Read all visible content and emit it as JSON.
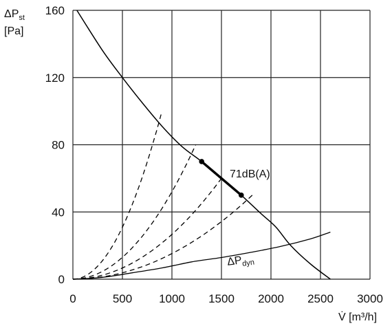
{
  "chart_data": {
    "type": "line",
    "ylabel_main": "ΔP",
    "ylabel_sub": "st",
    "ylabel_unit": "[Pa]",
    "xlabel": "V̇ [m³/h]",
    "xlim": [
      0,
      3000
    ],
    "ylim": [
      0,
      160
    ],
    "xticks": [
      0,
      500,
      1000,
      1500,
      2000,
      2500,
      3000
    ],
    "yticks": [
      0,
      40,
      80,
      120,
      160
    ],
    "xtick_labels": [
      "0",
      "500",
      "1000",
      "1500",
      "2000",
      "2500",
      "3000"
    ],
    "ytick_labels": [
      "0",
      "40",
      "80",
      "120",
      "160"
    ],
    "grid": true,
    "fan_curve": {
      "x": [
        40,
        300,
        500,
        700,
        900,
        1100,
        1300,
        1500,
        1700,
        1900,
        2050,
        2200,
        2400,
        2600
      ],
      "y": [
        160,
        136,
        120,
        105,
        91,
        79,
        70,
        60,
        50,
        39,
        31,
        20,
        9,
        0
      ]
    },
    "dynamic_pressure": {
      "label_main": "ΔP",
      "label_sub": "dyn",
      "x": [
        0,
        300,
        600,
        900,
        1200,
        1500,
        1800,
        2100,
        2400,
        2600
      ],
      "y": [
        0,
        1.1,
        3.8,
        6.7,
        10.3,
        12.9,
        16,
        19.5,
        24,
        28
      ]
    },
    "system_curves": [
      {
        "x_end": 890,
        "y_end": 98
      },
      {
        "x_end": 1240,
        "y_end": 80
      },
      {
        "x_end": 1500,
        "y_end": 60
      },
      {
        "x_end": 1830,
        "y_end": 51
      }
    ],
    "operating_range": {
      "label": "71dB(A)",
      "points": [
        {
          "x": 1300,
          "y": 70
        },
        {
          "x": 1700,
          "y": 50
        }
      ]
    }
  }
}
